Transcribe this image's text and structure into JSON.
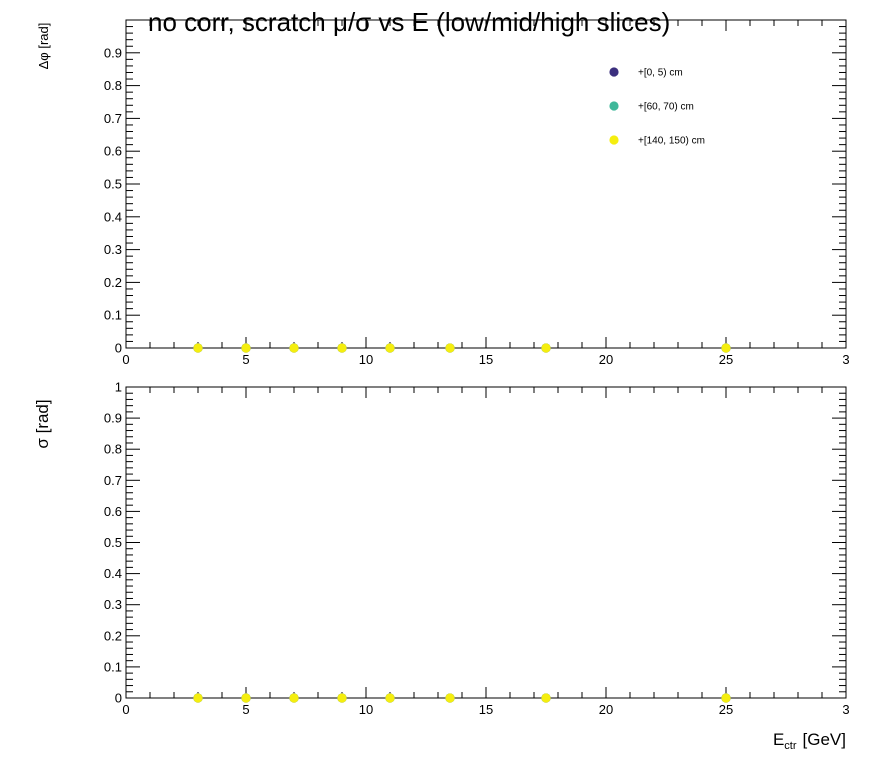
{
  "title": "no corr, scratch  μ/σ vs E  (low/mid/high slices)",
  "chart_data": [
    {
      "type": "scatter",
      "panel": "top",
      "ylabel": "Δφ  [rad]",
      "xlabel": "",
      "xlim": [
        0,
        30
      ],
      "ylim": [
        0,
        1
      ],
      "x_ticks": [
        "0",
        "5",
        "10",
        "15",
        "20",
        "25",
        "3"
      ],
      "y_ticks": [
        "0",
        "0.1",
        "0.2",
        "0.3",
        "0.4",
        "0.5",
        "0.6",
        "0.7",
        "0.8",
        "0.9"
      ],
      "legend_placement": "top-right",
      "series": [
        {
          "name": "+[0, 5) cm",
          "color": "#3b2f7e",
          "x": [
            3,
            5,
            7,
            9,
            11,
            13.5,
            17.5,
            25
          ],
          "y": [
            0,
            0,
            0,
            0,
            0,
            0,
            0,
            0
          ]
        },
        {
          "name": "+[60, 70) cm",
          "color": "#3fb89a",
          "x": [
            3,
            5,
            7,
            9,
            11,
            13.5,
            17.5,
            25
          ],
          "y": [
            0,
            0,
            0,
            0,
            0,
            0,
            0,
            0
          ]
        },
        {
          "name": "+[140, 150) cm",
          "color": "#f5ee0f",
          "x": [
            3,
            5,
            7,
            9,
            11,
            13.5,
            17.5,
            25
          ],
          "y": [
            0,
            0,
            0,
            0,
            0,
            0,
            0,
            0
          ]
        }
      ]
    },
    {
      "type": "scatter",
      "panel": "bottom",
      "ylabel": "σ  [rad]",
      "xlabel": "E_ctr  [GeV]",
      "xlabel_main": "E",
      "xlabel_sub": "ctr",
      "xlabel_unit": "[GeV]",
      "xlim": [
        0,
        30
      ],
      "ylim": [
        0,
        1
      ],
      "x_ticks": [
        "0",
        "5",
        "10",
        "15",
        "20",
        "25",
        "3"
      ],
      "y_ticks": [
        "0",
        "0.1",
        "0.2",
        "0.3",
        "0.4",
        "0.5",
        "0.6",
        "0.7",
        "0.8",
        "0.9",
        "1"
      ],
      "series": [
        {
          "color": "#3b2f7e",
          "x": [
            3,
            5,
            7,
            9,
            11,
            13.5,
            17.5,
            25
          ],
          "y": [
            0,
            0,
            0,
            0,
            0,
            0,
            0,
            0
          ]
        },
        {
          "color": "#3fb89a",
          "x": [
            3,
            5,
            7,
            9,
            11,
            13.5,
            17.5,
            25
          ],
          "y": [
            0,
            0,
            0,
            0,
            0,
            0,
            0,
            0
          ]
        },
        {
          "color": "#f5ee0f",
          "x": [
            3,
            5,
            7,
            9,
            11,
            13.5,
            17.5,
            25
          ],
          "y": [
            0,
            0,
            0,
            0,
            0,
            0,
            0,
            0
          ]
        }
      ]
    }
  ]
}
